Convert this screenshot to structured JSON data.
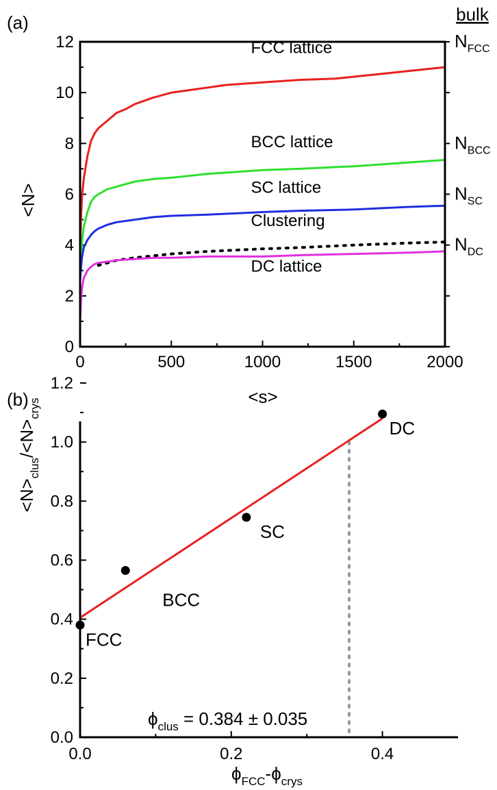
{
  "chart_data": [
    {
      "panel": "(a)",
      "type": "line",
      "xlabel": "<s>",
      "ylabel": "<N>",
      "xlim": [
        0,
        2000
      ],
      "ylim": [
        0,
        12
      ],
      "xticks": [
        0,
        500,
        1000,
        1500,
        2000
      ],
      "yticks": [
        0,
        2,
        4,
        6,
        8,
        10,
        12
      ],
      "right_axis_title": "bulk",
      "right_axis_labels": [
        {
          "main": "N",
          "sub": "FCC",
          "y": 12.0
        },
        {
          "main": "N",
          "sub": "BCC",
          "y": 8.0
        },
        {
          "main": "N",
          "sub": "SC",
          "y": 6.0
        },
        {
          "main": "N",
          "sub": "DC",
          "y": 4.0
        }
      ],
      "series": [
        {
          "name": "FCC lattice",
          "color": "#e8201e",
          "style": "solid",
          "x": [
            0,
            5,
            10,
            20,
            40,
            60,
            80,
            100,
            150,
            200,
            250,
            300,
            400,
            500,
            600,
            700,
            800,
            1000,
            1200,
            1400,
            1600,
            1800,
            2000
          ],
          "y": [
            3.5,
            5.0,
            5.9,
            6.6,
            7.5,
            8.1,
            8.4,
            8.6,
            8.9,
            9.2,
            9.35,
            9.55,
            9.8,
            10.0,
            10.1,
            10.2,
            10.3,
            10.4,
            10.5,
            10.55,
            10.7,
            10.85,
            11.0
          ]
        },
        {
          "name": "BCC lattice",
          "color": "#2ee02e",
          "style": "solid",
          "x": [
            0,
            5,
            10,
            20,
            40,
            60,
            80,
            100,
            150,
            200,
            300,
            400,
            500,
            700,
            1000,
            1200,
            1500,
            1800,
            2000
          ],
          "y": [
            3.0,
            3.6,
            4.1,
            4.7,
            5.3,
            5.7,
            5.9,
            6.0,
            6.2,
            6.3,
            6.5,
            6.6,
            6.65,
            6.8,
            6.95,
            7.0,
            7.1,
            7.25,
            7.35
          ]
        },
        {
          "name": "SC lattice",
          "color": "#1e2ee0",
          "style": "solid",
          "x": [
            0,
            5,
            10,
            20,
            40,
            60,
            80,
            100,
            150,
            200,
            300,
            400,
            500,
            700,
            1000,
            1200,
            1500,
            1800,
            2000
          ],
          "y": [
            2.6,
            3.1,
            3.5,
            3.9,
            4.2,
            4.4,
            4.55,
            4.65,
            4.8,
            4.9,
            5.0,
            5.1,
            5.15,
            5.2,
            5.3,
            5.35,
            5.4,
            5.5,
            5.55
          ]
        },
        {
          "name": "Clustering",
          "color": "#000000",
          "style": "dotted",
          "x": [
            100,
            200,
            300,
            500,
            700,
            1000,
            1200,
            1500,
            1800,
            2000
          ],
          "y": [
            3.2,
            3.4,
            3.5,
            3.65,
            3.75,
            3.85,
            3.9,
            4.0,
            4.08,
            4.12
          ]
        },
        {
          "name": "DC lattice",
          "color": "#e030e0",
          "style": "solid",
          "x": [
            0,
            5,
            10,
            20,
            40,
            60,
            80,
            100,
            150,
            200,
            300,
            400,
            500,
            700,
            1000,
            1200,
            1500,
            1800,
            2000
          ],
          "y": [
            1.0,
            1.8,
            2.3,
            2.7,
            3.0,
            3.15,
            3.25,
            3.3,
            3.35,
            3.4,
            3.45,
            3.5,
            3.5,
            3.55,
            3.55,
            3.6,
            3.65,
            3.7,
            3.75
          ]
        }
      ],
      "curve_labels": [
        {
          "text": "FCC lattice",
          "x": 1000,
          "y": 11.55
        },
        {
          "text": "BCC lattice",
          "x": 1000,
          "y": 7.85
        },
        {
          "text": "SC lattice",
          "x": 1000,
          "y": 6.05
        },
        {
          "text": "Clustering",
          "x": 1000,
          "y": 4.75
        },
        {
          "text": "DC lattice",
          "x": 1000,
          "y": 2.95
        }
      ]
    },
    {
      "panel": "(b)",
      "type": "scatter",
      "xlabel_main": "ϕ",
      "xlabel_sub1": "FCC",
      "xlabel_mid": "-ϕ",
      "xlabel_sub2": "crys",
      "ylabel_main1": "<N>",
      "ylabel_sub1": "clus",
      "ylabel_main2": "/<N>",
      "ylabel_sub2": "crys",
      "xlim": [
        0,
        0.5
      ],
      "ylim": [
        0,
        1.2
      ],
      "xticks": [
        "0.0",
        "0.2",
        "0.4"
      ],
      "xtick_values": [
        0.0,
        0.2,
        0.4
      ],
      "yticks": [
        "0.0",
        "0.2",
        "0.4",
        "0.6",
        "0.8",
        "1.0",
        "1.2"
      ],
      "ytick_values": [
        0.0,
        0.2,
        0.4,
        0.6,
        0.8,
        1.0,
        1.2
      ],
      "points": [
        {
          "label": "FCC",
          "x": 0.0,
          "y": 0.38
        },
        {
          "label": "BCC",
          "x": 0.06,
          "y": 0.565
        },
        {
          "label": "SC",
          "x": 0.22,
          "y": 0.745
        },
        {
          "label": "DC",
          "x": 0.4,
          "y": 1.095
        }
      ],
      "fit_line": {
        "color": "#e8201e",
        "x": [
          0.0,
          0.4
        ],
        "y": [
          0.405,
          1.08
        ]
      },
      "guide_line": {
        "color": "#999999",
        "style": "dotted",
        "x": 0.356,
        "y_top": 1.0
      },
      "annotation_main": "ϕ",
      "annotation_sub": "clus",
      "annotation_rest": " = 0.384 ± 0.035"
    }
  ]
}
